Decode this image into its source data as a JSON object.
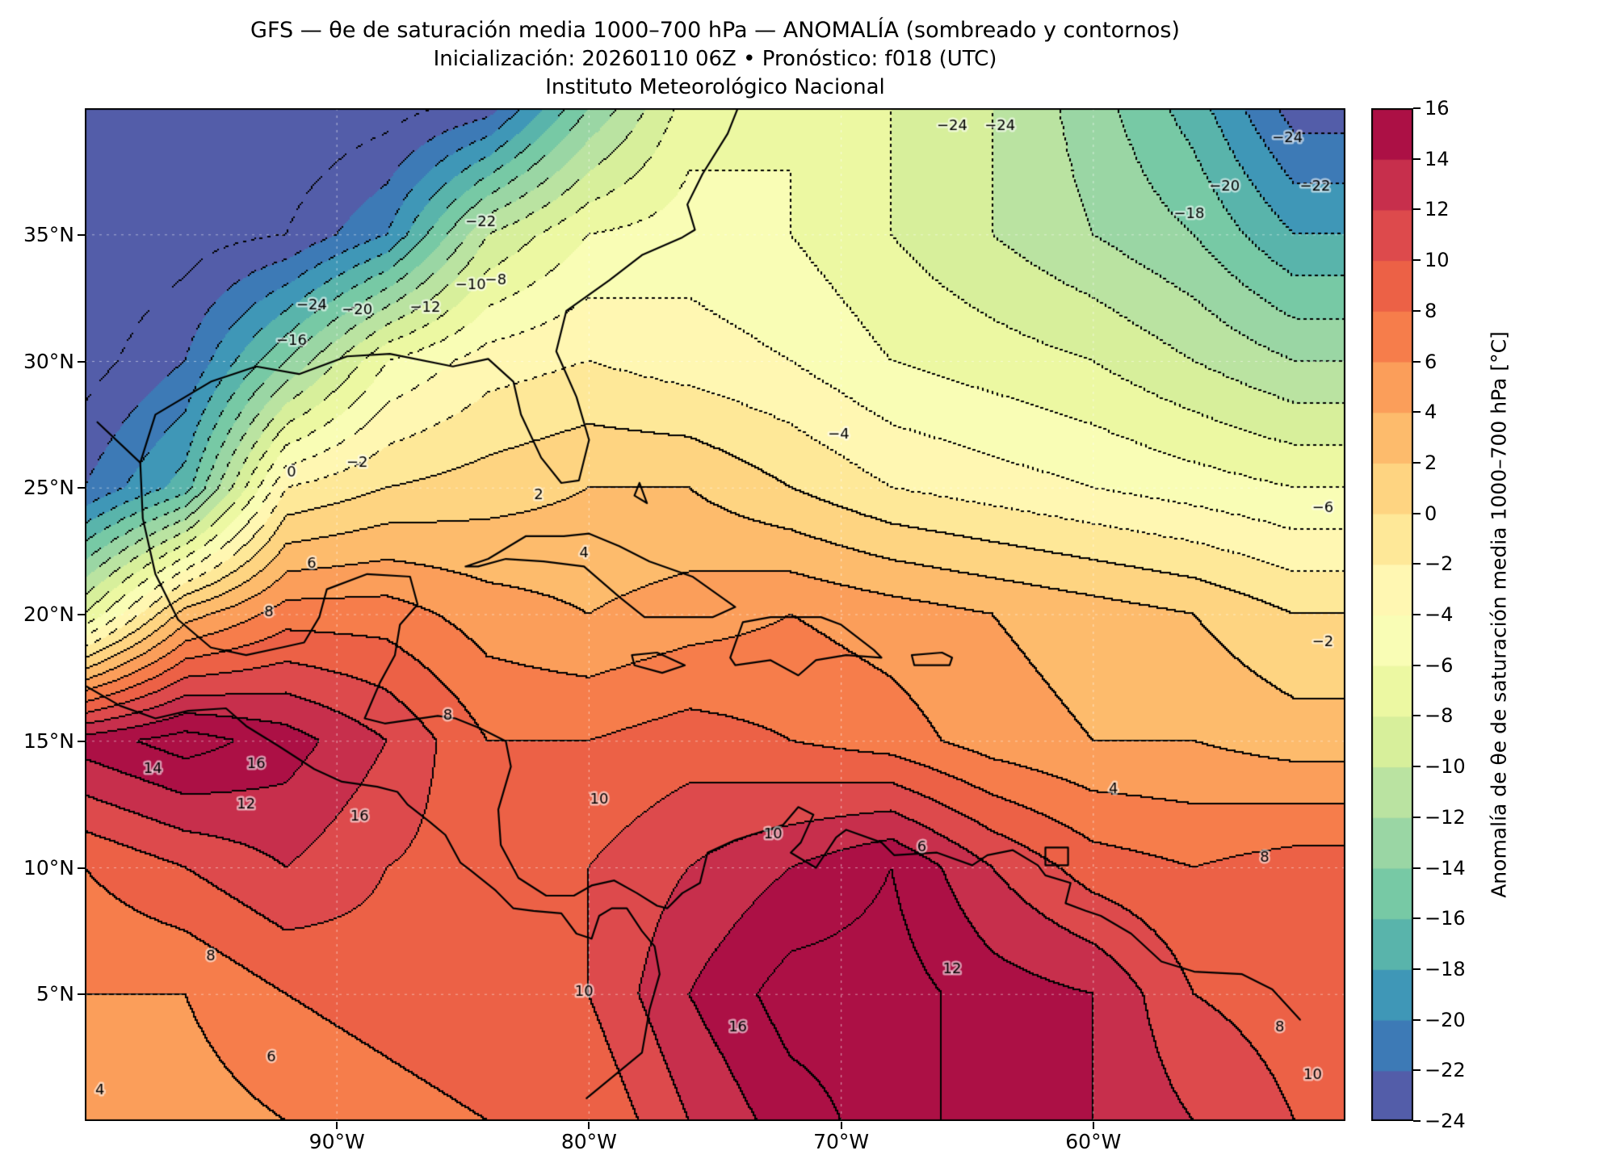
{
  "title": {
    "line1": "GFS — θe de saturación media 1000–700 hPa — ANOMALÍA (sombreado y contornos)",
    "line2": "Inicialización: 20260110 06Z  •  Pronóstico: f018 (UTC)",
    "line3": "Instituto Meteorológico Nacional"
  },
  "axes": {
    "lat_ticks": [
      {
        "value": 35,
        "label": "35°N"
      },
      {
        "value": 30,
        "label": "30°N"
      },
      {
        "value": 25,
        "label": "25°N"
      },
      {
        "value": 20,
        "label": "20°N"
      },
      {
        "value": 15,
        "label": "15°N"
      },
      {
        "value": 10,
        "label": "10°N"
      },
      {
        "value": 5,
        "label": "5°N"
      }
    ],
    "lon_ticks": [
      {
        "value": 90,
        "label": "90°W"
      },
      {
        "value": 80,
        "label": "80°W"
      },
      {
        "value": 70,
        "label": "70°W"
      },
      {
        "value": 60,
        "label": "60°W"
      }
    ]
  },
  "colorbar": {
    "label": "Anomalía de θe de saturación media 1000–700 hPa [°C]",
    "min": -24,
    "max": 16,
    "step": 2,
    "ticks": [
      {
        "v": 16,
        "label": "16"
      },
      {
        "v": 14,
        "label": "14"
      },
      {
        "v": 12,
        "label": "12"
      },
      {
        "v": 10,
        "label": "10"
      },
      {
        "v": 8,
        "label": "8"
      },
      {
        "v": 6,
        "label": "6"
      },
      {
        "v": 4,
        "label": "4"
      },
      {
        "v": 2,
        "label": "2"
      },
      {
        "v": 0,
        "label": "0"
      },
      {
        "v": -2,
        "label": "−2"
      },
      {
        "v": -4,
        "label": "−4"
      },
      {
        "v": -6,
        "label": "−6"
      },
      {
        "v": -8,
        "label": "−8"
      },
      {
        "v": -10,
        "label": "−10"
      },
      {
        "v": -12,
        "label": "−12"
      },
      {
        "v": -14,
        "label": "−14"
      },
      {
        "v": -16,
        "label": "−16"
      },
      {
        "v": -18,
        "label": "−18"
      },
      {
        "v": -20,
        "label": "−20"
      },
      {
        "v": -22,
        "label": "−22"
      },
      {
        "v": -24,
        "label": "−24"
      }
    ]
  },
  "chart_data": {
    "type": "heatmap",
    "subtype": "filled-contour-map",
    "model": "GFS",
    "variable": "Anomalía de θe de saturación media 1000–700 hPa",
    "units": "°C",
    "init": "20260110 06Z",
    "forecast": "f018 (UTC)",
    "institution": "Instituto Meteorológico Nacional",
    "levels": {
      "min": -24,
      "max": 16,
      "step": 2
    },
    "contours": {
      "interval": 2,
      "negative_style": "dotted",
      "positive_style": "solid",
      "color": "#000000"
    },
    "colormap": [
      "#5e4fa2",
      "#3288bd",
      "#66c2a5",
      "#abdda4",
      "#e6f598",
      "#ffffbf",
      "#fee08b",
      "#fdae61",
      "#f46d43",
      "#d53e4f",
      "#9e0142"
    ],
    "extent": {
      "west_degW": 100,
      "east_degW": 50,
      "south_degN": 0,
      "north_degN": 40
    },
    "grid": {
      "lon_start_degW": 100,
      "lon_step_deg": 4,
      "lat_start_degN": 40,
      "lat_step_deg": 5,
      "lons_degW": [
        100,
        96,
        92,
        88,
        84,
        80,
        76,
        72,
        68,
        64,
        60,
        56,
        52
      ],
      "lats_degN": [
        40,
        35,
        30,
        25,
        20,
        15,
        10,
        5,
        0
      ],
      "values": [
        [
          -26,
          -26,
          -26,
          -25,
          -23,
          -14,
          -7,
          -6,
          -8,
          -10,
          -13,
          -17,
          -23
        ],
        [
          -26,
          -25,
          -24,
          -20,
          -10,
          -6,
          -5,
          -6,
          -8,
          -10,
          -12,
          -14,
          -18
        ],
        [
          -25,
          -22,
          -14,
          -6,
          -3,
          -2,
          -3,
          -4,
          -6,
          -7,
          -8,
          -10,
          -12
        ],
        [
          -22,
          -17,
          -2,
          0,
          1,
          2,
          2,
          0,
          -2,
          -3,
          -4,
          -5,
          -6
        ],
        [
          -8,
          3,
          7,
          7,
          5,
          4,
          5,
          6,
          5,
          4,
          3,
          2,
          0
        ],
        [
          15,
          17,
          15,
          12,
          8,
          8,
          9,
          8,
          7,
          5,
          4,
          4,
          3
        ],
        [
          8,
          10,
          12,
          10,
          9,
          10,
          12,
          14,
          16,
          12,
          9,
          8,
          9
        ],
        [
          6,
          6,
          8,
          9,
          10,
          10,
          14,
          17,
          17,
          15,
          14,
          10,
          9
        ],
        [
          4,
          5,
          6,
          7,
          8,
          8,
          12,
          15,
          17,
          15,
          14,
          12,
          10
        ]
      ]
    },
    "contour_labels": [
      [
        "−24",
        91.0,
        32.2
      ],
      [
        "−20",
        89.2,
        32.0
      ],
      [
        "−16",
        91.8,
        30.8
      ],
      [
        "−12",
        86.5,
        32.1
      ],
      [
        "−10",
        84.7,
        33.0
      ],
      [
        "−8",
        83.7,
        33.2
      ],
      [
        "−22",
        84.3,
        35.5
      ],
      [
        "−24",
        65.6,
        39.3
      ],
      [
        "−24",
        63.7,
        39.3
      ],
      [
        "−24",
        52.3,
        38.8
      ],
      [
        "−22",
        51.2,
        36.9
      ],
      [
        "−20",
        54.8,
        36.9
      ],
      [
        "−18",
        56.2,
        35.8
      ],
      [
        "−4",
        70.1,
        27.1
      ],
      [
        "−2",
        89.2,
        26.0
      ],
      [
        "0",
        91.8,
        25.6
      ],
      [
        "2",
        82.0,
        24.7
      ],
      [
        "−6",
        50.9,
        24.2
      ],
      [
        "−2",
        50.9,
        18.9
      ],
      [
        "4",
        80.2,
        22.4
      ],
      [
        "6",
        91.0,
        22.0
      ],
      [
        "8",
        92.7,
        20.1
      ],
      [
        "8",
        85.6,
        16.0
      ],
      [
        "16",
        93.2,
        14.1
      ],
      [
        "14",
        97.3,
        13.9
      ],
      [
        "12",
        93.6,
        12.5
      ],
      [
        "16",
        89.1,
        12.0
      ],
      [
        "10",
        79.6,
        12.7
      ],
      [
        "10",
        72.7,
        11.3
      ],
      [
        "6",
        66.8,
        10.8
      ],
      [
        "8",
        53.2,
        10.4
      ],
      [
        "4",
        59.2,
        13.1
      ],
      [
        "12",
        65.6,
        6.0
      ],
      [
        "16",
        74.1,
        3.7
      ],
      [
        "10",
        80.2,
        5.1
      ],
      [
        "8",
        95.0,
        6.5
      ],
      [
        "6",
        92.6,
        2.5
      ],
      [
        "4",
        99.4,
        1.2
      ],
      [
        "8",
        52.6,
        3.7
      ],
      [
        "10",
        51.3,
        1.8
      ]
    ]
  }
}
